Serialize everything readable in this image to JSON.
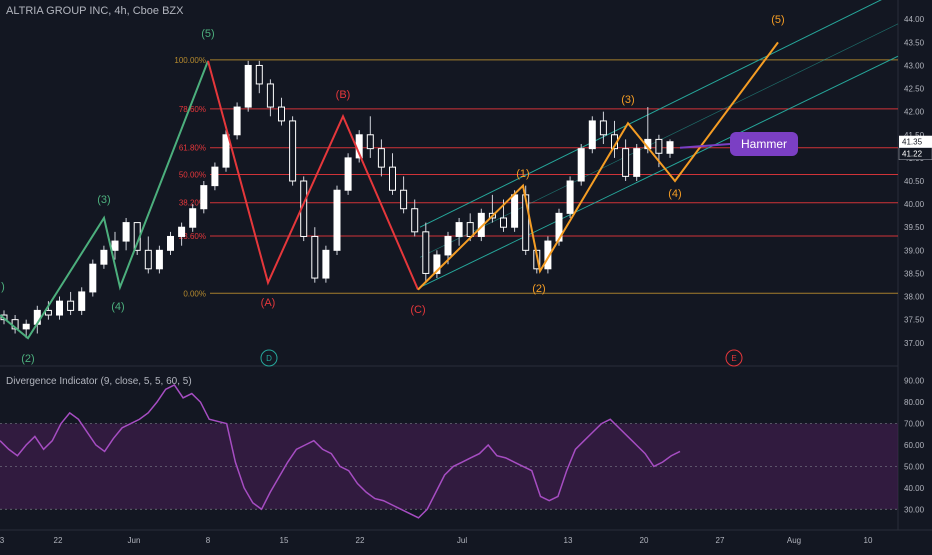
{
  "header": {
    "symbol": "ALTRIA GROUP INC, 4h, Cboe BZX"
  },
  "indicator": {
    "title": "Divergence Indicator (9, close, 5, 5, 60, 5)",
    "y_ticks": [
      "90.00",
      "80.00",
      "70.00",
      "60.00",
      "50.00",
      "40.00",
      "30.00"
    ],
    "y_values": [
      90,
      80,
      70,
      60,
      50,
      40,
      30
    ]
  },
  "price_axis": {
    "ticks": [
      "44.00",
      "43.50",
      "43.00",
      "42.50",
      "42.00",
      "41.50",
      "41.00",
      "40.50",
      "40.00",
      "39.50",
      "39.00",
      "38.50",
      "38.00",
      "37.50",
      "37.00"
    ],
    "tick_values": [
      44.0,
      43.5,
      43.0,
      42.5,
      42.0,
      41.5,
      41.0,
      40.5,
      40.0,
      39.5,
      39.0,
      38.5,
      38.0,
      37.5,
      37.0
    ],
    "last_price_label": "41.35",
    "current_price_label": "41.22"
  },
  "time_axis": {
    "labels": [
      "3",
      "22",
      "Jun",
      "8",
      "15",
      "22",
      "Jul",
      "13",
      "20",
      "27",
      "Aug",
      "10"
    ]
  },
  "fib_levels": [
    {
      "label": "100.00%",
      "price": 43.12,
      "color": "#b58a2e"
    },
    {
      "label": "78.60%",
      "price": 42.06,
      "color": "#e5373b"
    },
    {
      "label": "61.80%",
      "price": 41.22,
      "color": "#e5373b"
    },
    {
      "label": "50.00%",
      "price": 40.64,
      "color": "#e5373b"
    },
    {
      "label": "38.20%",
      "price": 40.03,
      "color": "#e5373b"
    },
    {
      "label": "23.60%",
      "price": 39.31,
      "color": "#e5373b"
    },
    {
      "label": "0.00%",
      "price": 38.07,
      "color": "#b58a2e"
    }
  ],
  "wave_labels": {
    "impulse_green": [
      "(3)",
      "(4)",
      "(5)",
      "(2)",
      ")"
    ],
    "correction_red": [
      "(A)",
      "(B)",
      "(C)"
    ],
    "impulse_orange": [
      "(1)",
      "(2)",
      "(3)",
      "(4)",
      "(5)"
    ],
    "circles": [
      "D",
      "E"
    ]
  },
  "annotation": {
    "hammer": "Hammer"
  },
  "colors": {
    "background": "#131722",
    "up": "#ffffff",
    "down": "#ffffff",
    "wick": "#d1d4dc",
    "green_wave": "#4caf7d",
    "red_wave": "#e5373b",
    "orange_wave": "#f59d24",
    "channel": "#26a69a",
    "osc": "#a64dc2",
    "osc_band": "#4a1f58",
    "hammer_bg": "#7b3fc4"
  },
  "chart_data": {
    "type": "candlestick",
    "series": [
      {
        "name": "ALTRIA GROUP INC",
        "values_ohlc": [
          [
            37.6,
            37.7,
            37.4,
            37.5
          ],
          [
            37.5,
            37.6,
            37.2,
            37.3
          ],
          [
            37.3,
            37.5,
            37.1,
            37.4
          ],
          [
            37.4,
            37.8,
            37.2,
            37.7
          ],
          [
            37.7,
            37.9,
            37.5,
            37.6
          ],
          [
            37.6,
            38.0,
            37.5,
            37.9
          ],
          [
            37.9,
            38.1,
            37.6,
            37.7
          ],
          [
            37.7,
            38.2,
            37.6,
            38.1
          ],
          [
            38.1,
            38.8,
            38.0,
            38.7
          ],
          [
            38.7,
            39.1,
            38.6,
            39.0
          ],
          [
            39.0,
            39.4,
            38.8,
            39.2
          ],
          [
            39.2,
            39.7,
            39.0,
            39.6
          ],
          [
            39.6,
            39.6,
            38.9,
            39.0
          ],
          [
            39.0,
            39.3,
            38.5,
            38.6
          ],
          [
            38.6,
            39.1,
            38.5,
            39.0
          ],
          [
            39.0,
            39.4,
            38.9,
            39.3
          ],
          [
            39.3,
            39.6,
            39.1,
            39.5
          ],
          [
            39.5,
            40.0,
            39.4,
            39.9
          ],
          [
            39.9,
            40.5,
            39.8,
            40.4
          ],
          [
            40.4,
            40.9,
            40.3,
            40.8
          ],
          [
            40.8,
            41.6,
            40.7,
            41.5
          ],
          [
            41.5,
            42.2,
            41.4,
            42.1
          ],
          [
            42.1,
            43.1,
            42.0,
            43.0
          ],
          [
            43.0,
            43.1,
            42.4,
            42.6
          ],
          [
            42.6,
            42.7,
            41.9,
            42.1
          ],
          [
            42.1,
            42.3,
            41.7,
            41.8
          ],
          [
            41.8,
            41.9,
            40.4,
            40.5
          ],
          [
            40.5,
            40.6,
            39.2,
            39.3
          ],
          [
            39.3,
            39.5,
            38.3,
            38.4
          ],
          [
            38.4,
            39.1,
            38.3,
            39.0
          ],
          [
            39.0,
            40.4,
            38.9,
            40.3
          ],
          [
            40.3,
            41.1,
            40.2,
            41.0
          ],
          [
            41.0,
            41.6,
            40.9,
            41.5
          ],
          [
            41.5,
            41.9,
            41.0,
            41.2
          ],
          [
            41.2,
            41.4,
            40.6,
            40.8
          ],
          [
            40.8,
            41.1,
            40.2,
            40.3
          ],
          [
            40.3,
            40.6,
            39.8,
            39.9
          ],
          [
            39.9,
            40.1,
            39.3,
            39.4
          ],
          [
            39.4,
            39.6,
            38.3,
            38.5
          ],
          [
            38.5,
            39.0,
            38.4,
            38.9
          ],
          [
            38.9,
            39.4,
            38.7,
            39.3
          ],
          [
            39.3,
            39.7,
            39.1,
            39.6
          ],
          [
            39.6,
            39.8,
            39.2,
            39.3
          ],
          [
            39.3,
            39.9,
            39.2,
            39.8
          ],
          [
            39.8,
            40.2,
            39.6,
            39.7
          ],
          [
            39.7,
            40.1,
            39.4,
            39.5
          ],
          [
            39.5,
            40.3,
            39.4,
            40.2
          ],
          [
            40.2,
            40.4,
            38.9,
            39.0
          ],
          [
            39.0,
            39.0,
            38.5,
            38.6
          ],
          [
            38.6,
            39.3,
            38.5,
            39.2
          ],
          [
            39.2,
            39.9,
            39.1,
            39.8
          ],
          [
            39.8,
            40.6,
            39.7,
            40.5
          ],
          [
            40.5,
            41.3,
            40.4,
            41.2
          ],
          [
            41.2,
            41.9,
            41.1,
            41.8
          ],
          [
            41.8,
            42.0,
            41.3,
            41.5
          ],
          [
            41.5,
            41.8,
            41.0,
            41.2
          ],
          [
            41.2,
            41.4,
            40.5,
            40.6
          ],
          [
            40.6,
            41.3,
            40.5,
            41.2
          ],
          [
            41.2,
            42.1,
            41.1,
            41.4
          ],
          [
            41.4,
            41.5,
            40.8,
            41.1
          ],
          [
            41.1,
            41.4,
            41.0,
            41.35
          ]
        ]
      }
    ],
    "ylim": [
      36.8,
      44.2
    ],
    "elliott_green": [
      [
        "(2)",
        37.1
      ],
      [
        "(3)",
        39.7
      ],
      [
        "(4)",
        38.2
      ],
      [
        "(5)",
        43.1
      ]
    ],
    "elliott_red": [
      [
        "(A)",
        38.3
      ],
      [
        "(B)",
        41.9
      ],
      [
        "(C)",
        38.15
      ]
    ],
    "elliott_orange": [
      [
        "(1)",
        40.4
      ],
      [
        "(2)",
        38.55
      ],
      [
        "(3)",
        41.75
      ],
      [
        "(4)",
        40.5
      ],
      [
        "(5)",
        43.5
      ]
    ],
    "oscillator": {
      "name": "Divergence Indicator",
      "ylim": [
        25,
        95
      ],
      "band": [
        30,
        70
      ],
      "mid": 50,
      "values": [
        62,
        58,
        55,
        60,
        64,
        58,
        62,
        70,
        75,
        72,
        66,
        60,
        57,
        63,
        68,
        70,
        72,
        75,
        80,
        86,
        88,
        82,
        84,
        80,
        72,
        71,
        70,
        52,
        40,
        33,
        30,
        38,
        45,
        52,
        58,
        60,
        62,
        58,
        56,
        50,
        48,
        42,
        38,
        35,
        34,
        32,
        30,
        28,
        26,
        30,
        38,
        46,
        50,
        52,
        54,
        56,
        60,
        55,
        54,
        52,
        50,
        48,
        36,
        34,
        36,
        48,
        58,
        62,
        66,
        70,
        72,
        68,
        64,
        60,
        56,
        50,
        52,
        55,
        57
      ]
    }
  }
}
